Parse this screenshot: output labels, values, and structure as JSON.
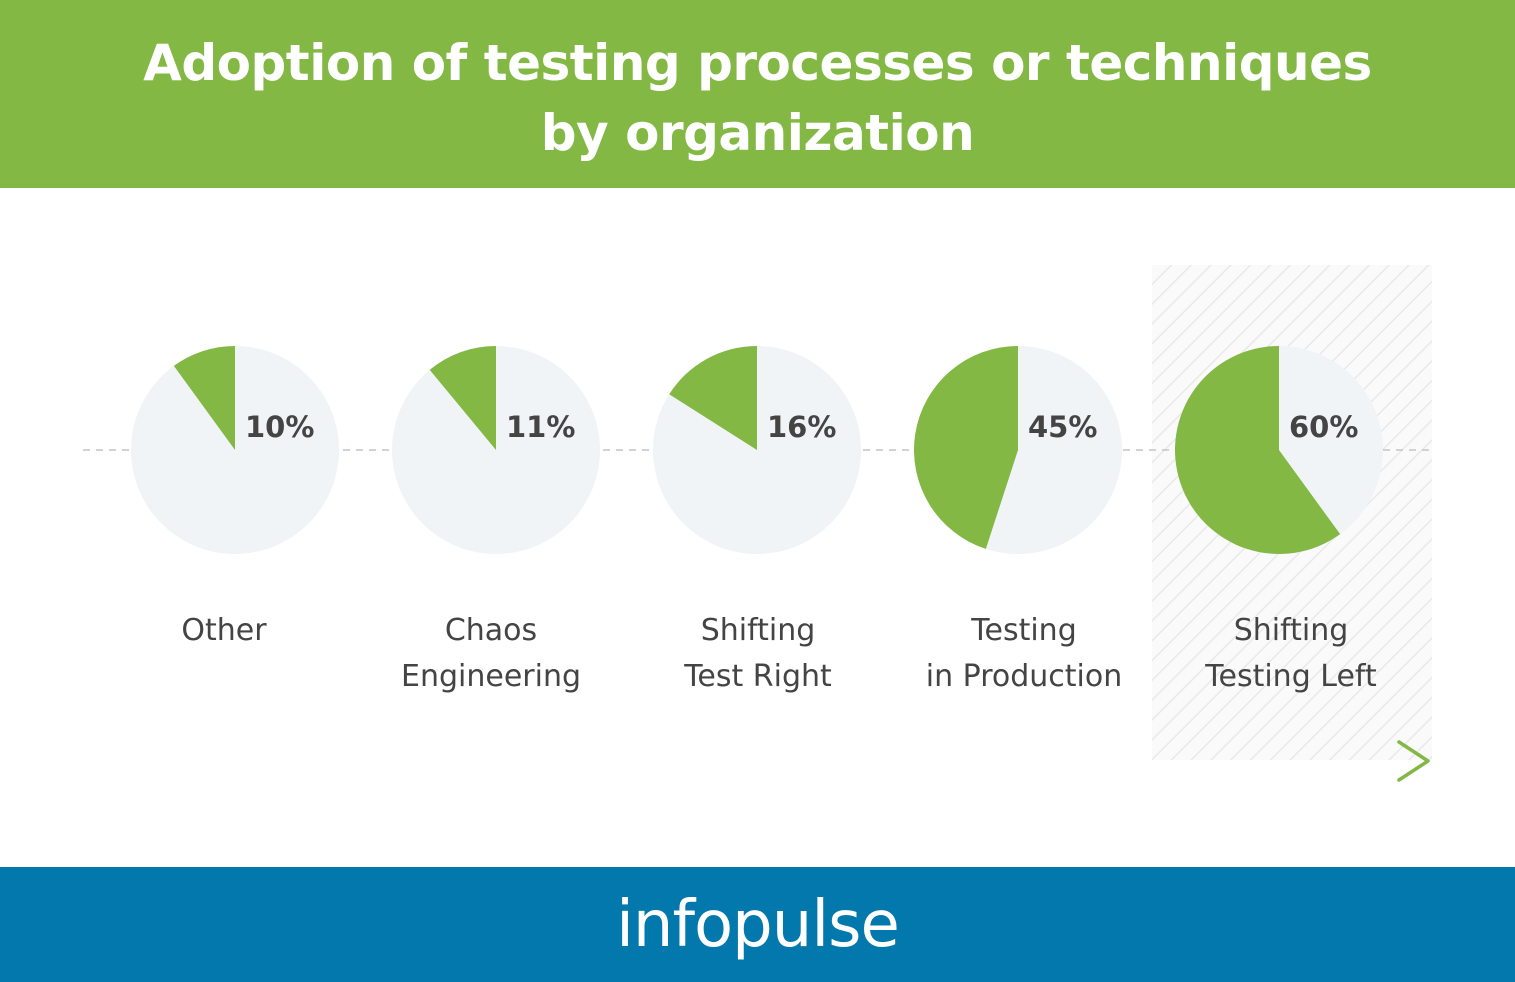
{
  "title": {
    "line1": "Adoption of testing processes or techniques",
    "line2": "by organization"
  },
  "chart_data": {
    "type": "pie",
    "title": "Adoption of testing processes or techniques by organization",
    "categories": [
      [
        "Other"
      ],
      [
        "Chaos",
        "Engineering"
      ],
      [
        "Shifting",
        "Test Right"
      ],
      [
        "Testing",
        "in Production"
      ],
      [
        "Shifting",
        "Testing Left"
      ]
    ],
    "values": [
      10,
      11,
      16,
      45,
      60
    ],
    "value_labels": [
      "10%",
      "11%",
      "16%",
      "45%",
      "60%"
    ],
    "highlighted_index": 4,
    "colors": {
      "slice": "#82b843",
      "remainder": "#f0f4f7",
      "label": "#444444",
      "arrow": "#82b843",
      "highlight_hatch": "#e6e6e6"
    }
  },
  "footer": {
    "brand": "infopulse"
  },
  "colors": {
    "header_bg": "#82b843",
    "footer_bg": "#0278ad"
  }
}
